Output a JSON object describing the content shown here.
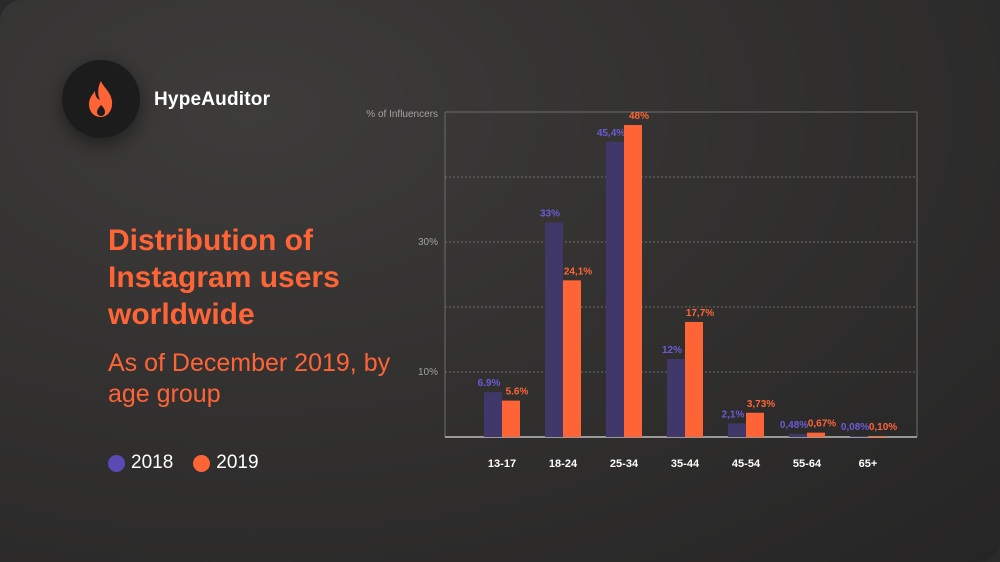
{
  "brand": {
    "name": "HypeAuditor",
    "icon": "flame-icon",
    "icon_color": "#ff6437"
  },
  "heading": {
    "title": "Distribution of Instagram users worldwide",
    "subtitle": "As of December 2019, by age group"
  },
  "legend": [
    {
      "label": "2018",
      "color": "#5a4ab6"
    },
    {
      "label": "2019",
      "color": "#ff6437"
    }
  ],
  "colors": {
    "background": "#2b2a2a",
    "accent": "#ff6437",
    "series_2018_bar": "#3f3868",
    "series_2018_label": "#6b5bd6",
    "series_2019": "#ff6437"
  },
  "chart_data": {
    "type": "bar",
    "ylabel": "% of Influencers",
    "y_ticks": [
      {
        "value": 10,
        "label": "10%"
      },
      {
        "value": 30,
        "label": "30%"
      }
    ],
    "ylim": [
      0,
      50
    ],
    "grid": true,
    "legend_position": "bottom-left",
    "categories": [
      "13-17",
      "18-24",
      "25-34",
      "35-44",
      "45-54",
      "55-64",
      "65+"
    ],
    "series": [
      {
        "name": "2018",
        "values": [
          6.9,
          33,
          45.4,
          12,
          2.1,
          0.48,
          0.08
        ],
        "labels": [
          "6.9%",
          "33%",
          "45,4%",
          "12%",
          "2,1%",
          "0,48%",
          "0,08%"
        ]
      },
      {
        "name": "2019",
        "values": [
          5.6,
          24.1,
          48,
          17.7,
          3.73,
          0.67,
          0.1
        ],
        "labels": [
          "5.6%",
          "24,1%",
          "48%",
          "17,7%",
          "3,73%",
          "0,67%",
          "0,10%"
        ]
      }
    ]
  }
}
